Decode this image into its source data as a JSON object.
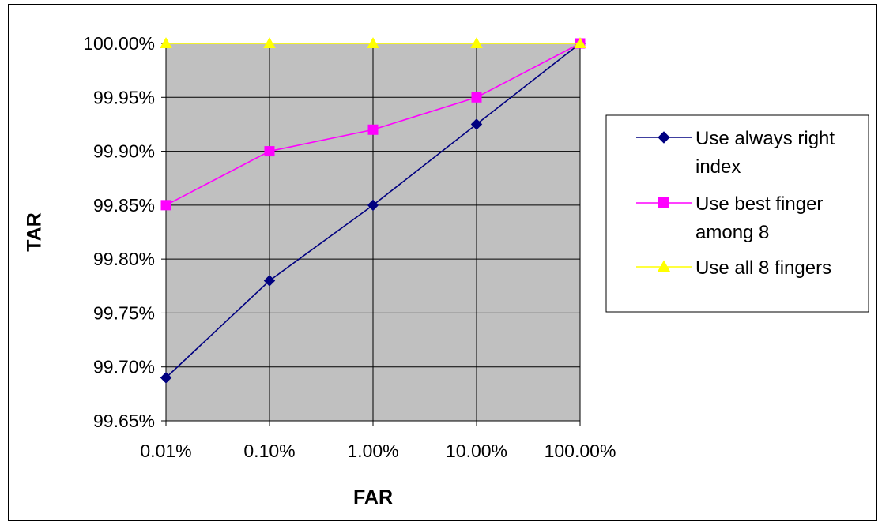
{
  "chart_data": {
    "type": "line",
    "title": "",
    "xlabel": "FAR",
    "ylabel": "TAR",
    "categories": [
      "0.01%",
      "0.10%",
      "1.00%",
      "10.00%",
      "100.00%"
    ],
    "y_ticks": [
      "99.65%",
      "99.70%",
      "99.75%",
      "99.80%",
      "99.85%",
      "99.90%",
      "99.95%",
      "100.00%"
    ],
    "ylim": [
      99.65,
      100.0
    ],
    "grid": true,
    "plot_background": "#c0c0c0",
    "legend_position": "right",
    "series": [
      {
        "name_lines": [
          "Use always right",
          "index"
        ],
        "name": "Use always right index",
        "color": "#000080",
        "marker": "diamond",
        "values": [
          99.69,
          99.78,
          99.85,
          99.925,
          100.0
        ]
      },
      {
        "name_lines": [
          "Use best finger",
          "among 8"
        ],
        "name": "Use best finger among 8",
        "color": "#ff00ff",
        "marker": "square",
        "values": [
          99.85,
          99.9,
          99.92,
          99.95,
          100.0
        ]
      },
      {
        "name_lines": [
          "Use all 8 fingers"
        ],
        "name": "Use all 8 fingers",
        "color": "#ffff00",
        "marker": "triangle",
        "values": [
          100.0,
          100.0,
          100.0,
          100.0,
          100.0
        ]
      }
    ]
  }
}
